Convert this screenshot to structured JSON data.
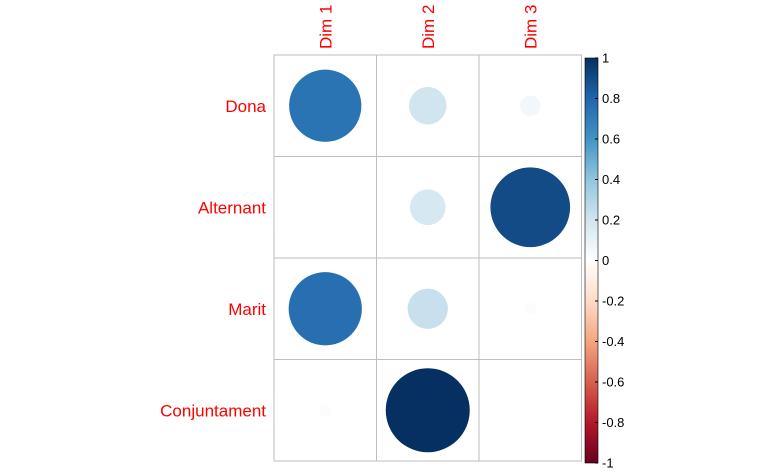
{
  "chart_data": {
    "type": "heatmap",
    "subtype": "corrplot-circle",
    "rows": [
      "Dona",
      "Alternant",
      "Marit",
      "Conjuntament"
    ],
    "columns": [
      "Dim 1",
      "Dim 2",
      "Dim 3"
    ],
    "values": [
      [
        0.74,
        0.2,
        0.06
      ],
      [
        0.0,
        0.18,
        0.9
      ],
      [
        0.76,
        0.23,
        0.02
      ],
      [
        0.02,
        1.0,
        0.0
      ]
    ],
    "colorbar": {
      "range": [
        -1,
        1
      ],
      "ticks": [
        "1",
        "0.8",
        "0.6",
        "0.4",
        "0.2",
        "0",
        "-0.2",
        "-0.4",
        "-0.6",
        "-0.8",
        "-1"
      ],
      "tick_values": [
        1,
        0.8,
        0.6,
        0.4,
        0.2,
        0,
        -0.2,
        -0.4,
        -0.6,
        -0.8,
        -1
      ],
      "palette": [
        "#67001f",
        "#b2182b",
        "#d6604d",
        "#f4a582",
        "#fddbc7",
        "#ffffff",
        "#d1e5f0",
        "#92c5de",
        "#4393c3",
        "#2166ac",
        "#053061"
      ]
    },
    "label_color": "#ff0000",
    "grid_color": "#bebebe",
    "grid": true,
    "legend": "right"
  }
}
